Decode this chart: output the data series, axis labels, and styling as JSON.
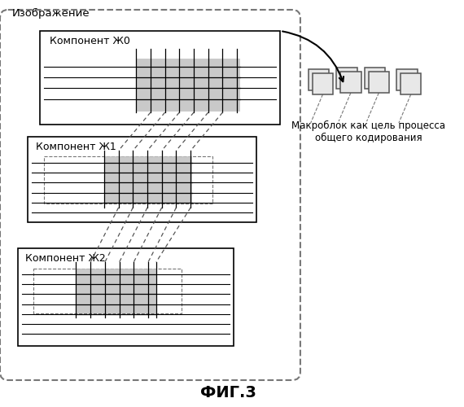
{
  "title": "ФИГ.3",
  "label_image": "Изображение",
  "label_c0": "Компонент Ж0",
  "label_c1": "Компонент Ж1",
  "label_c2": "Компонент Ж2",
  "label_macro": "Макроблок как цель процесса\nобщего кодирования",
  "bg_color": "#ffffff"
}
